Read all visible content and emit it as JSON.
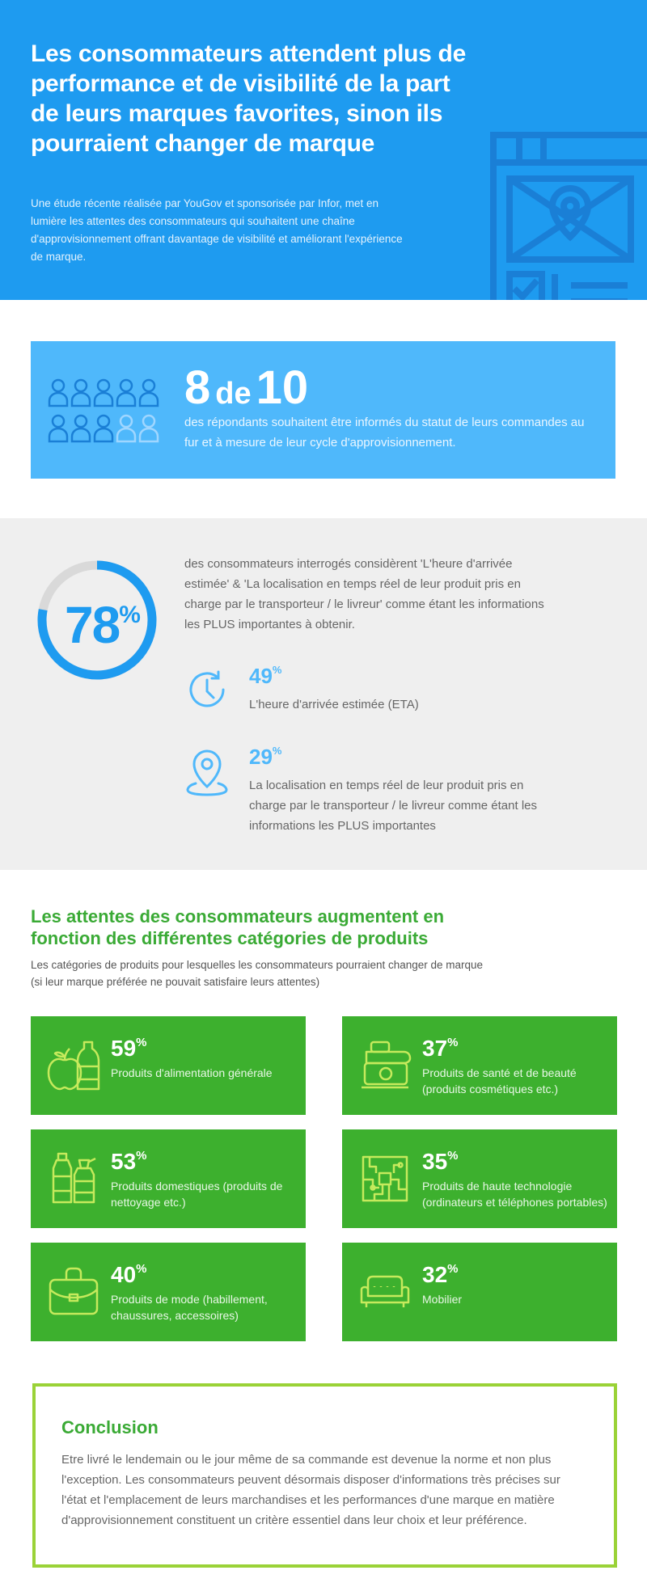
{
  "header": {
    "title": "Les consommateurs attendent plus de performance et de visibilité de la part de leurs marques favorites, sinon ils pourraient changer de marque",
    "intro": "Une étude récente réalisée par YouGov et sponsorisée par Infor, met en lumière les attentes des consommateurs qui souhaitent une chaîne d'approvisionnement offrant davantage de visibilité et améliorant l'expérience de marque."
  },
  "stat_8_10": {
    "number": "8",
    "de": "de",
    "total": "10",
    "filled_people": 8,
    "total_people": 10,
    "text": "des répondants souhaitent être informés du statut de leurs commandes au fur et à mesure de leur cycle d'approvisionnement."
  },
  "stat_78": {
    "value": "78",
    "unit": "%",
    "fraction": 0.78,
    "text": "des consommateurs interrogés considèrent 'L'heure d'arrivée estimée' & 'La localisation en temps réel de leur produit pris en charge par le transporteur / le livreur' comme étant les informations les PLUS importantes à obtenir.",
    "items": [
      {
        "value": "49",
        "unit": "%",
        "icon": "clock-icon",
        "label": "L'heure d'arrivée estimée (ETA)"
      },
      {
        "value": "29",
        "unit": "%",
        "icon": "location-pin-icon",
        "label": "La localisation en temps réel de leur produit pris en charge par le transporteur / le livreur comme étant les informations les PLUS importantes"
      }
    ]
  },
  "categories": {
    "title": "Les attentes des consommateurs augmentent en fonction des différentes catégories de produits",
    "subtitle": "Les catégories de produits pour lesquelles les consommateurs pourraient changer de marque (si leur marque préférée ne pouvait satisfaire leurs attentes)",
    "cards": [
      {
        "value": "59",
        "unit": "%",
        "icon": "grocery-icon",
        "label": "Produits d'alimentation générale"
      },
      {
        "value": "37",
        "unit": "%",
        "icon": "cosmetics-icon",
        "label": "Produits de santé et de beauté (produits cosmétiques etc.)"
      },
      {
        "value": "53",
        "unit": "%",
        "icon": "cleaning-bottles-icon",
        "label": "Produits domestiques (produits de nettoyage etc.)"
      },
      {
        "value": "35",
        "unit": "%",
        "icon": "circuit-chip-icon",
        "label": "Produits de haute technologie (ordinateurs et téléphones portables)"
      },
      {
        "value": "40",
        "unit": "%",
        "icon": "handbag-icon",
        "label": "Produits de mode (habillement, chaussures, accessoires)"
      },
      {
        "value": "32",
        "unit": "%",
        "icon": "sofa-icon",
        "label": "Mobilier"
      }
    ]
  },
  "conclusion": {
    "title": "Conclusion",
    "text": "Etre livré le lendemain ou le jour même de sa commande est devenue la norme et non plus l'exception. Les consommateurs peuvent désormais disposer d'informations très précises sur l'état et l'emplacement de leurs marchandises et les performances d'une marque en matière d'approvisionnement constituent un critère essentiel dans leur choix et leur préférence."
  },
  "colors": {
    "header_blue": "#1e9bf0",
    "light_blue": "#4fb8fb",
    "green": "#3db02e",
    "lime": "#9ad237"
  }
}
